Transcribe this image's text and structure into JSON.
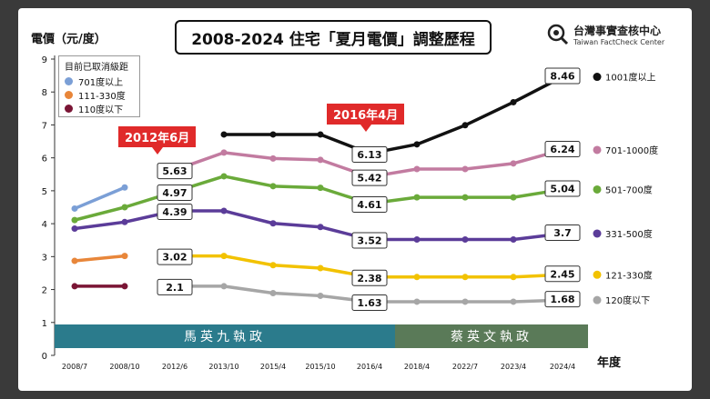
{
  "title": "2008-2024 住宅「夏月電價」調整歷程",
  "logo": {
    "name_zh": "台灣事實查核中心",
    "name_en": "Taiwan FactCheck Center",
    "icon": "magnifier-icon"
  },
  "legend_box": {
    "title": "目前已取消級距",
    "items": [
      {
        "label": "701度以上",
        "color": "#7b9fd6"
      },
      {
        "label": "111-330度",
        "color": "#e8863a"
      },
      {
        "label": "110度以下",
        "color": "#7a1535"
      }
    ]
  },
  "callouts": [
    {
      "text": "2012年6月",
      "category": "2012/6"
    },
    {
      "text": "2016年4月",
      "category": "2016/4"
    }
  ],
  "eras": [
    {
      "label": "馬英九執政",
      "from": "2008/7",
      "to": "2016/4",
      "color": "#2b7b8c"
    },
    {
      "label": "蔡英文執政",
      "from": "2018/4",
      "to": "2024/4",
      "color": "#5a7a58"
    }
  ],
  "chart_data": {
    "type": "line",
    "ylabel": "電價（元/度）",
    "xlabel": "年度",
    "ylim": [
      0,
      9
    ],
    "yticks": [
      "0",
      "1",
      "2",
      "3",
      "4",
      "5",
      "6",
      "7",
      "8",
      "9"
    ],
    "categories": [
      "2008/7",
      "2008/10",
      "2012/6",
      "2013/10",
      "2015/4",
      "2015/10",
      "2016/4",
      "2018/4",
      "2022/7",
      "2023/4",
      "2024/4"
    ],
    "series": [
      {
        "name": "1001度以上",
        "color": "#111111",
        "values": [
          null,
          null,
          null,
          6.71,
          6.71,
          6.71,
          6.13,
          6.41,
          6.99,
          7.69,
          8.46
        ],
        "labels": [
          null,
          null,
          null,
          null,
          null,
          null,
          "6.13",
          null,
          null,
          null,
          "8.46"
        ]
      },
      {
        "name": "701-1000度",
        "color": "#c27ba0",
        "values": [
          null,
          null,
          5.63,
          6.16,
          5.98,
          5.94,
          5.42,
          5.66,
          5.66,
          5.83,
          6.24
        ],
        "labels": [
          null,
          null,
          "5.63",
          null,
          null,
          null,
          "5.42",
          null,
          null,
          null,
          "6.24"
        ]
      },
      {
        "name": "501-700度",
        "color": "#6aaa3a",
        "values": [
          4.11,
          4.5,
          4.97,
          5.44,
          5.14,
          5.09,
          4.61,
          4.8,
          4.8,
          4.8,
          5.04
        ],
        "labels": [
          null,
          null,
          "4.97",
          null,
          null,
          null,
          "4.61",
          null,
          null,
          null,
          "5.04"
        ]
      },
      {
        "name": "331-500度",
        "color": "#5b3c99",
        "values": [
          3.85,
          4.05,
          4.39,
          4.39,
          4.01,
          3.9,
          3.52,
          3.52,
          3.52,
          3.52,
          "3.7"
        ],
        "labels": [
          null,
          null,
          "4.39",
          null,
          null,
          null,
          "3.52",
          null,
          null,
          null,
          "3.7"
        ]
      },
      {
        "name": "121-330度",
        "color": "#f2c200",
        "values": [
          null,
          null,
          3.02,
          3.02,
          2.74,
          2.65,
          2.38,
          2.38,
          2.38,
          2.38,
          2.45
        ],
        "labels": [
          null,
          null,
          "3.02",
          null,
          null,
          null,
          "2.38",
          null,
          null,
          null,
          "2.45"
        ]
      },
      {
        "name": "120度以下",
        "color": "#a6a6a6",
        "values": [
          null,
          null,
          2.1,
          2.1,
          1.89,
          1.81,
          1.63,
          1.63,
          1.63,
          1.63,
          1.68
        ],
        "labels": [
          null,
          null,
          "2.1",
          null,
          null,
          null,
          "1.63",
          null,
          null,
          null,
          "1.68"
        ]
      },
      {
        "name": "701度以上",
        "color": "#7b9fd6",
        "values": [
          4.46,
          5.1,
          null,
          null,
          null,
          null,
          null,
          null,
          null,
          null,
          null
        ],
        "labels": [
          null,
          null,
          null,
          null,
          null,
          null,
          null,
          null,
          null,
          null,
          null
        ]
      },
      {
        "name": "111-330度",
        "color": "#e8863a",
        "values": [
          2.87,
          3.02,
          null,
          null,
          null,
          null,
          null,
          null,
          null,
          null,
          null
        ],
        "labels": [
          null,
          null,
          null,
          null,
          null,
          null,
          null,
          null,
          null,
          null,
          null
        ]
      },
      {
        "name": "110度以下",
        "color": "#7a1535",
        "values": [
          2.1,
          2.1,
          null,
          null,
          null,
          null,
          null,
          null,
          null,
          null,
          null
        ],
        "labels": [
          null,
          null,
          null,
          null,
          null,
          null,
          null,
          null,
          null,
          null,
          null
        ]
      }
    ],
    "right_legend": [
      "1001度以上",
      "701-1000度",
      "501-700度",
      "331-500度",
      "121-330度",
      "120度以下"
    ],
    "grid": false
  }
}
